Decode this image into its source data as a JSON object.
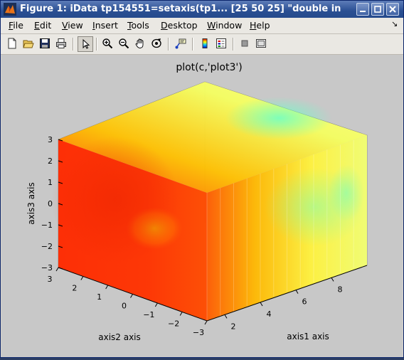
{
  "window": {
    "title": "Figure 1: iData tp154551=setaxis(tp1... [25  50  25] \"double in"
  },
  "menu": {
    "items": [
      {
        "label": "File",
        "u": "F",
        "rest": "ile"
      },
      {
        "label": "Edit",
        "u": "E",
        "rest": "dit"
      },
      {
        "label": "View",
        "u": "V",
        "rest": "iew"
      },
      {
        "label": "Insert",
        "u": "I",
        "rest": "nsert"
      },
      {
        "label": "Tools",
        "u": "T",
        "rest": "ools"
      },
      {
        "label": "Desktop",
        "u": "D",
        "rest": "esktop"
      },
      {
        "label": "Window",
        "u": "W",
        "rest": "indow"
      },
      {
        "label": "Help",
        "u": "H",
        "rest": "elp"
      }
    ],
    "dock_glyph": "↘"
  },
  "toolbar": {
    "buttons": [
      "new-figure",
      "open-file",
      "save-figure",
      "print-figure",
      "edit-plot",
      "zoom-in",
      "zoom-out",
      "pan",
      "rotate-3d",
      "data-cursor",
      "insert-colorbar",
      "insert-legend",
      "hide-plot-tools",
      "show-plot-tools"
    ],
    "selected": "edit-plot"
  },
  "plot": {
    "title": "plot(c,'plot3')",
    "xlabel": "axis1 axis",
    "ylabel": "axis2 axis",
    "zlabel": "axis3 axis",
    "x_ticks": [
      "2",
      "4",
      "6",
      "8"
    ],
    "y_ticks": [
      "3",
      "2",
      "1",
      "0",
      "−1",
      "−2",
      "−3"
    ],
    "z_ticks": [
      "3",
      "2",
      "1",
      "0",
      "−1",
      "−2",
      "−3"
    ]
  },
  "chart_data": {
    "type": "scatter",
    "title": "plot(c,'plot3')",
    "xlabel": "axis1 axis",
    "ylabel": "axis2 axis",
    "zlabel": "axis3 axis",
    "xlim": [
      1,
      10
    ],
    "ylim": [
      -3,
      3
    ],
    "zlim": [
      -3,
      3
    ],
    "grid_size": [
      25,
      50,
      25
    ],
    "colormap": "jet",
    "colors": {
      "low": "#55ffc8",
      "mid": "#ffff50",
      "high": "#ff2a00"
    }
  }
}
